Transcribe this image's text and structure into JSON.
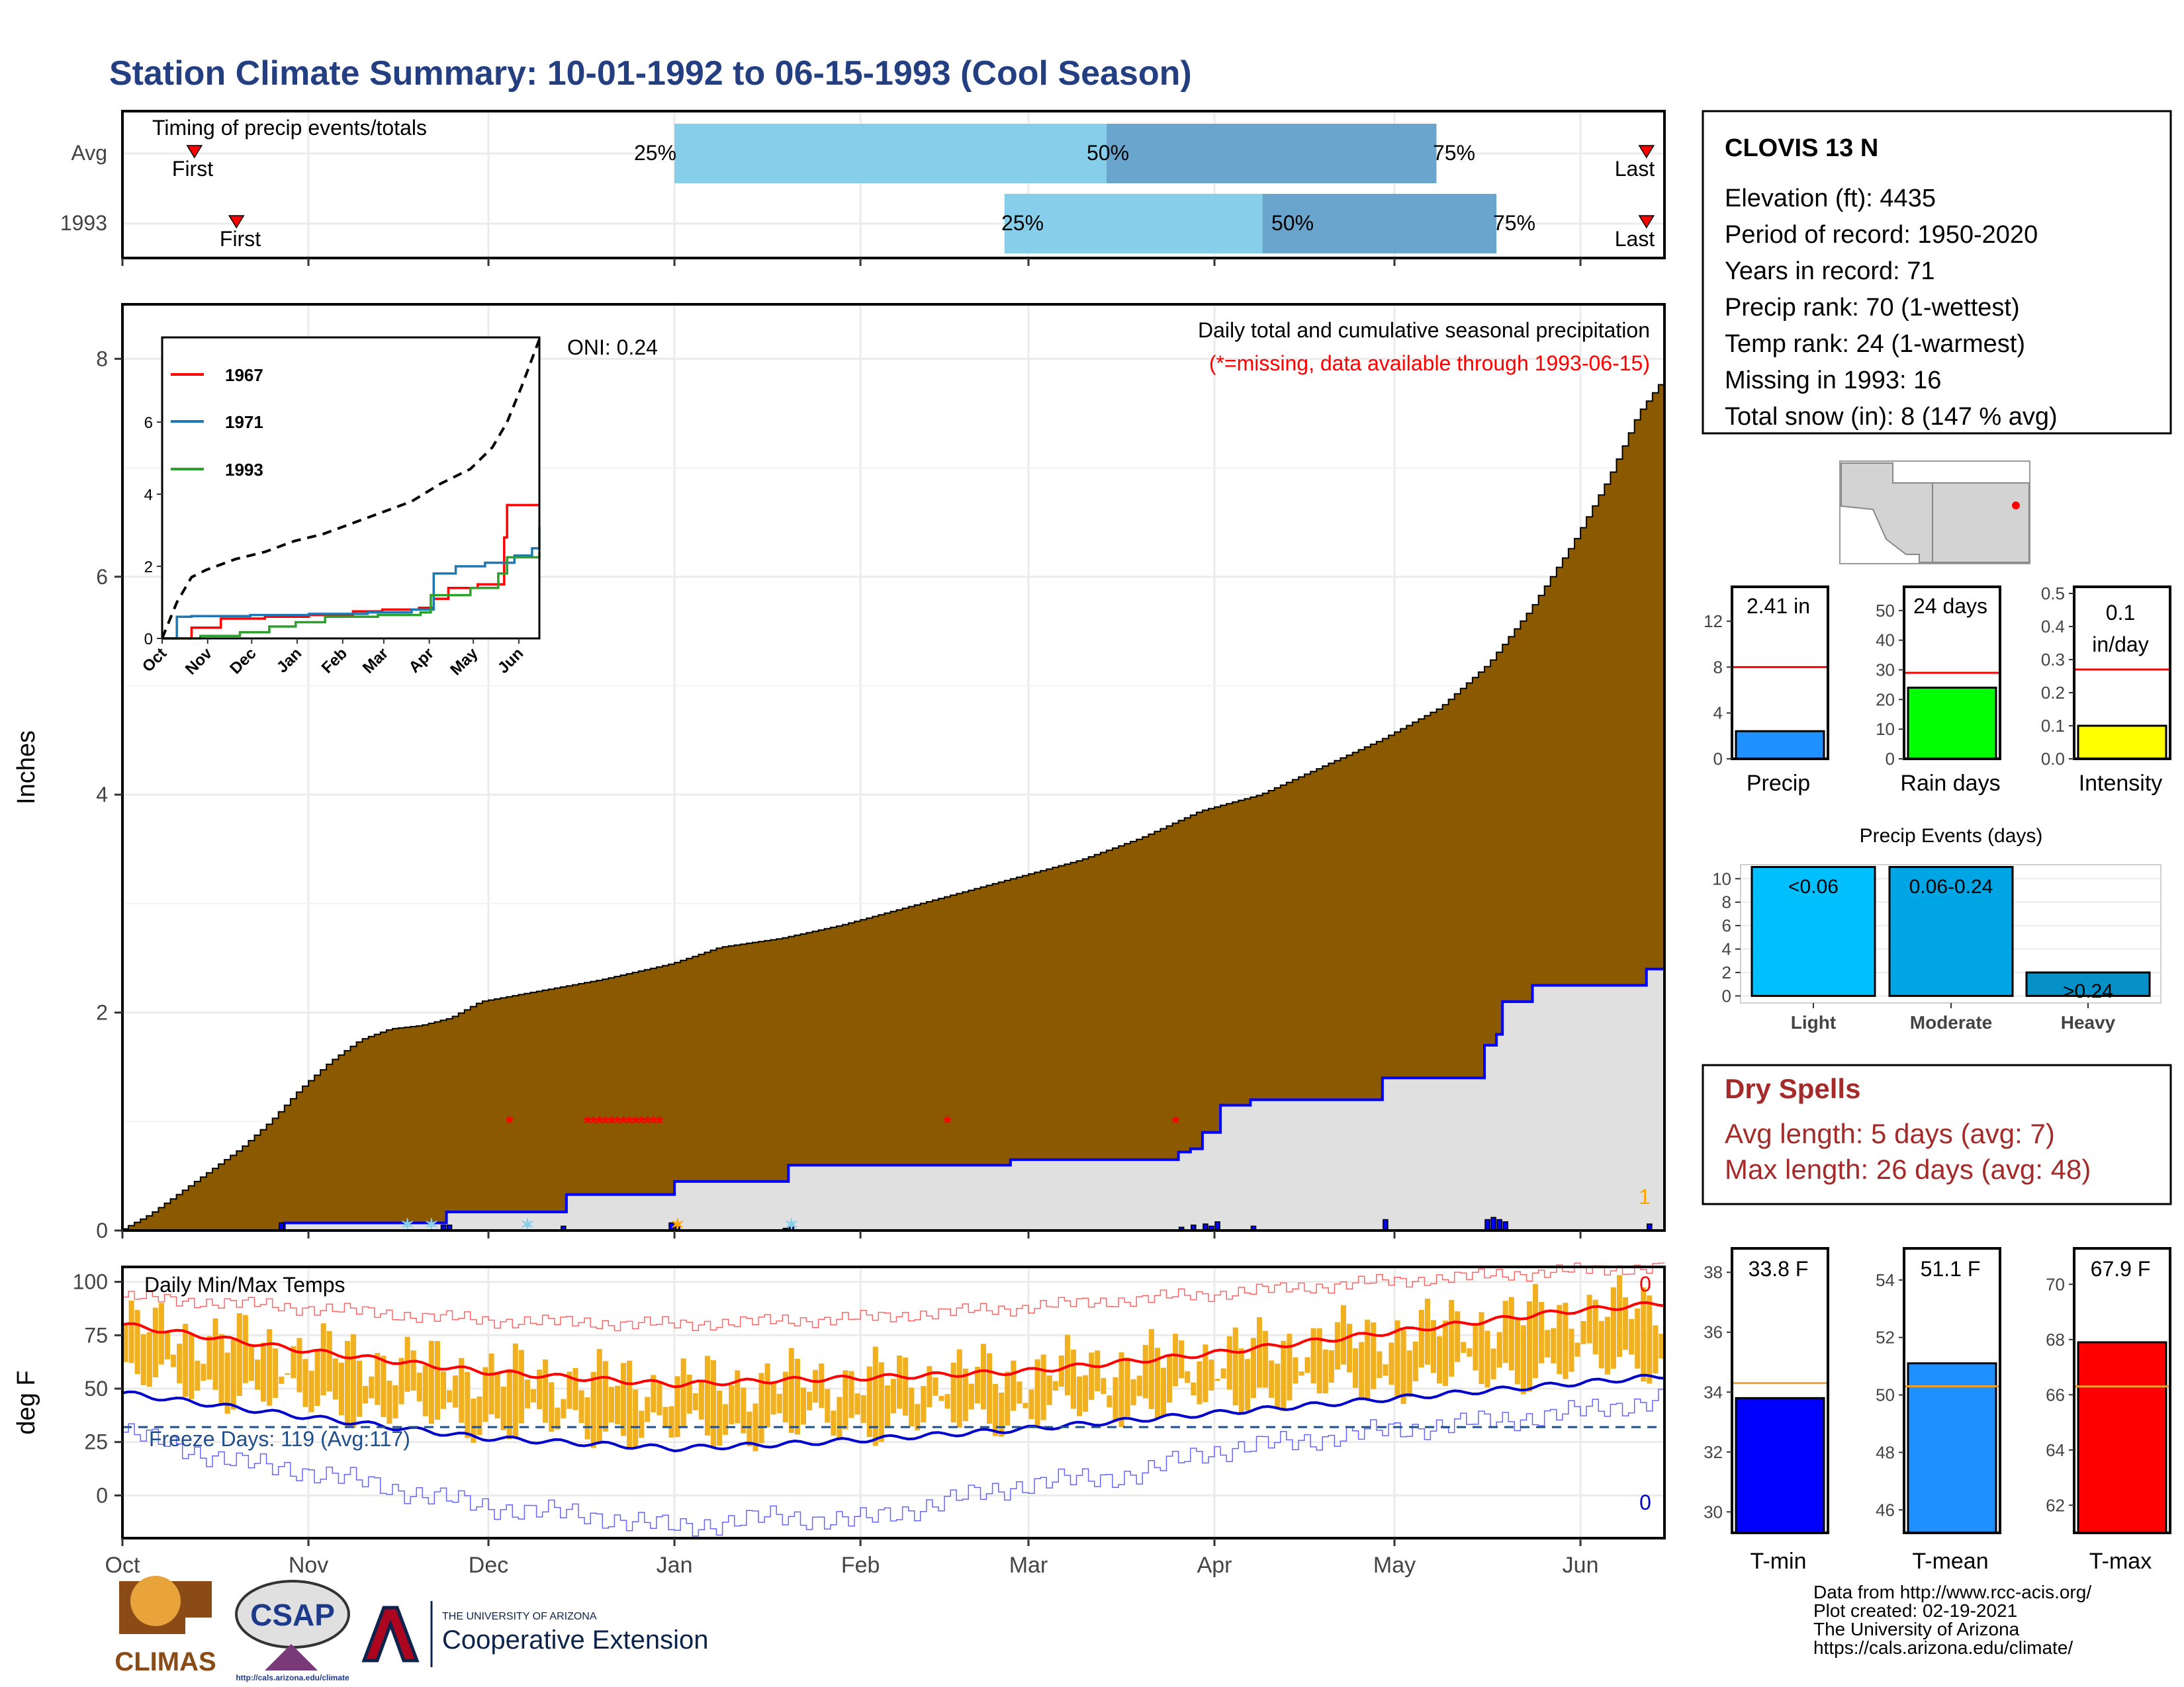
{
  "page_title": "Station Climate Summary: 10-01-1992 to 06-15-1993 (Cool Season)",
  "colors": {
    "title": "#233f82",
    "precip_fill": "#8b5a00",
    "avg_precip_fill": "#e0e0e0",
    "series_blue": "#0000ff",
    "tmax_avg": "#ff0000",
    "tmin_avg": "#0000cc",
    "temp_bars": "#f0b020",
    "missing_marker": "#ff0000",
    "quartile_light": "#87ceeb",
    "quartile_dark": "#6aa5cd",
    "dry_spells_text": "#a52a2a"
  },
  "chart_data": [
    {
      "id": "timing",
      "type": "bar",
      "title": "Timing of precip events/totals",
      "categories": [
        "Avg",
        "1993"
      ],
      "x_ticks": [
        "Oct",
        "Nov",
        "Dec",
        "Jan",
        "Feb",
        "Mar",
        "Apr",
        "May",
        "Jun"
      ],
      "series": [
        {
          "name": "Avg",
          "first_day": 12,
          "p25": 92,
          "p50": 164,
          "p75": 219,
          "last_day": 254
        },
        {
          "name": "1993",
          "first_day": 19,
          "p25": 147,
          "p50": 190,
          "p75": 229,
          "last_day": 254
        }
      ],
      "labels": {
        "first": "First",
        "last": "Last",
        "p25": "25%",
        "p50": "50%",
        "p75": "75%"
      }
    },
    {
      "id": "precip",
      "type": "area",
      "ylabel": "Inches",
      "ylim": [
        0,
        8.5
      ],
      "y_ticks": [
        "0",
        "2",
        "4",
        "6",
        "8"
      ],
      "annotation_title": "Daily total and cumulative seasonal precipitation",
      "annotation_missing": "(*=missing, data available through 1993-06-15)",
      "oni": "ONI: 0.24",
      "corner_label": "1",
      "avg_cumulative": {
        "days": [
          0,
          5,
          10,
          15,
          20,
          25,
          30,
          35,
          40,
          45,
          50,
          55,
          60,
          70,
          80,
          92,
          100,
          110,
          120,
          130,
          140,
          150,
          160,
          170,
          180,
          190,
          200,
          210,
          220,
          228,
          235,
          242,
          248,
          253,
          257
        ],
        "values": [
          0,
          0.15,
          0.35,
          0.55,
          0.75,
          1.0,
          1.3,
          1.55,
          1.75,
          1.85,
          1.88,
          1.95,
          2.1,
          2.2,
          2.3,
          2.45,
          2.6,
          2.68,
          2.8,
          2.95,
          3.1,
          3.25,
          3.4,
          3.6,
          3.85,
          4.0,
          4.25,
          4.5,
          4.8,
          5.2,
          5.7,
          6.3,
          6.9,
          7.5,
          7.8
        ]
      },
      "year_cumulative": {
        "days": [
          0,
          26,
          27,
          53,
          54,
          73,
          74,
          91,
          92,
          110,
          111,
          147,
          148,
          175,
          176,
          178,
          180,
          183,
          188,
          209,
          210,
          226,
          227,
          229,
          230,
          234,
          235,
          254,
          257
        ],
        "values": [
          0,
          0,
          0.07,
          0.07,
          0.17,
          0.17,
          0.33,
          0.33,
          0.45,
          0.45,
          0.6,
          0.6,
          0.65,
          0.65,
          0.72,
          0.75,
          0.9,
          1.15,
          1.2,
          1.2,
          1.4,
          1.4,
          1.7,
          1.8,
          2.1,
          2.1,
          2.25,
          2.4,
          2.4
        ]
      },
      "daily_precip": {
        "days": [
          26,
          53,
          54,
          73,
          91,
          92,
          110,
          111,
          176,
          178,
          180,
          181,
          182,
          188,
          210,
          227,
          228,
          229,
          230,
          254
        ],
        "values": [
          0.07,
          0.05,
          0.05,
          0.04,
          0.07,
          0.05,
          0.02,
          0.03,
          0.03,
          0.05,
          0.06,
          0.04,
          0.08,
          0.04,
          0.1,
          0.1,
          0.12,
          0.1,
          0.08,
          0.06
        ]
      },
      "missing_days": [
        64,
        77,
        78,
        79,
        80,
        81,
        82,
        83,
        84,
        85,
        86,
        87,
        88,
        89,
        137,
        175
      ]
    },
    {
      "id": "inset",
      "type": "line",
      "y_ticks": [
        "0",
        "2",
        "4",
        "6"
      ],
      "x_ticks": [
        "Oct",
        "Nov",
        "Dec",
        "Jan",
        "Feb",
        "Mar",
        "Apr",
        "May",
        "Jun"
      ],
      "series": [
        {
          "name": "1967",
          "days": [
            0,
            20,
            40,
            70,
            100,
            130,
            150,
            175,
            185,
            195,
            215,
            230,
            233,
            235,
            257
          ],
          "values": [
            0,
            0.3,
            0.55,
            0.6,
            0.65,
            0.75,
            0.8,
            0.85,
            1.1,
            1.4,
            1.5,
            1.5,
            2.8,
            3.7,
            3.7
          ]
        },
        {
          "name": "1971",
          "days": [
            0,
            10,
            20,
            60,
            100,
            140,
            170,
            185,
            200,
            220,
            240,
            252,
            257
          ],
          "values": [
            0,
            0.6,
            0.62,
            0.65,
            0.68,
            0.72,
            0.8,
            1.8,
            2.0,
            2.1,
            2.3,
            2.5,
            3.1
          ]
        },
        {
          "name": "1993",
          "days": [
            0,
            26,
            53,
            73,
            91,
            111,
            147,
            176,
            183,
            210,
            229,
            235,
            257
          ],
          "values": [
            0,
            0.07,
            0.17,
            0.33,
            0.45,
            0.6,
            0.65,
            0.72,
            1.2,
            1.4,
            1.8,
            2.25,
            2.4
          ]
        },
        {
          "name": "max",
          "days": [
            0,
            5,
            10,
            20,
            30,
            50,
            70,
            90,
            110,
            130,
            150,
            170,
            190,
            210,
            225,
            235,
            245,
            257
          ],
          "values": [
            0,
            0.5,
            1.0,
            1.7,
            1.9,
            2.2,
            2.4,
            2.7,
            2.9,
            3.2,
            3.5,
            3.8,
            4.3,
            4.7,
            5.3,
            6.0,
            7.0,
            8.3
          ]
        }
      ]
    },
    {
      "id": "temps",
      "type": "bar",
      "title": "Daily Min/Max Temps",
      "ylabel": "deg F",
      "ylim": [
        -20,
        107
      ],
      "y_ticks": [
        "0",
        "25",
        "50",
        "75",
        "100"
      ],
      "x_ticks": [
        "Oct",
        "Nov",
        "Dec",
        "Jan",
        "Feb",
        "Mar",
        "Apr",
        "May",
        "Jun"
      ],
      "freeze_label": "Freeze Days: 119 (Avg:117)",
      "freeze_line": 32,
      "label_top": "0",
      "label_bottom": "0",
      "avg_max": {
        "days": [
          0,
          30,
          60,
          92,
          110,
          123,
          150,
          180,
          210,
          240,
          257
        ],
        "values": [
          80,
          68,
          58,
          52,
          54,
          55,
          58,
          66,
          76,
          86,
          90
        ]
      },
      "avg_min": {
        "days": [
          0,
          30,
          60,
          92,
          110,
          123,
          150,
          180,
          210,
          240,
          257
        ],
        "values": [
          48,
          37,
          27,
          22,
          24,
          26,
          31,
          38,
          45,
          52,
          56
        ]
      },
      "rec_max": {
        "days": [
          0,
          30,
          60,
          92,
          123,
          150,
          180,
          210,
          240,
          257
        ],
        "values": [
          93,
          88,
          82,
          80,
          83,
          88,
          94,
          100,
          105,
          107
        ]
      },
      "rec_min": {
        "days": [
          0,
          20,
          30,
          60,
          80,
          92,
          110,
          123,
          150,
          170,
          180,
          210,
          240,
          257
        ],
        "values": [
          30,
          15,
          12,
          -5,
          -10,
          -15,
          -10,
          -12,
          5,
          10,
          20,
          30,
          38,
          45
        ]
      }
    },
    {
      "id": "mini_precip",
      "type": "bar",
      "value_label": "2.41 in",
      "xlabel": "Precip",
      "value": 2.41,
      "avg": 8.0,
      "ylim": [
        0,
        15
      ],
      "y_ticks": [
        "0",
        "4",
        "8",
        "12"
      ],
      "color": "#1e90ff"
    },
    {
      "id": "mini_raindays",
      "type": "bar",
      "value_label": "24 days",
      "xlabel": "Rain days",
      "value": 24,
      "avg": 29,
      "ylim": [
        0,
        58
      ],
      "y_ticks": [
        "0",
        "10",
        "20",
        "30",
        "40",
        "50"
      ],
      "color": "#00ff00"
    },
    {
      "id": "mini_intensity",
      "type": "bar",
      "value_label_1": "0.1",
      "value_label_2": "in/day",
      "xlabel": "Intensity",
      "value": 0.1,
      "avg": 0.27,
      "ylim": [
        0,
        0.52
      ],
      "y_ticks": [
        "0.0",
        "0.1",
        "0.2",
        "0.3",
        "0.4",
        "0.5"
      ],
      "color": "#ffff00"
    },
    {
      "id": "events",
      "type": "bar",
      "title": "Precip Events (days)",
      "categories": [
        "Light",
        "Moderate",
        "Heavy"
      ],
      "bar_labels": [
        "<0.06",
        "0.06-0.24",
        ">0.24"
      ],
      "values": [
        11,
        11,
        2
      ],
      "ylim": [
        -0.6,
        11.2
      ],
      "y_ticks": [
        "0",
        "2",
        "4",
        "6",
        "8",
        "10"
      ],
      "colors": [
        "#00bfff",
        "#00a5e3",
        "#0590c8"
      ]
    },
    {
      "id": "mini_tmin",
      "type": "bar",
      "value_label": "33.8 F",
      "xlabel": "T-min",
      "value": 33.8,
      "avg": 34.3,
      "ylim": [
        29.3,
        38.8
      ],
      "y_ticks": [
        "30",
        "32",
        "34",
        "36",
        "38"
      ],
      "color": "#0000ff"
    },
    {
      "id": "mini_tmean",
      "type": "bar",
      "value_label": "51.1 F",
      "xlabel": "T-mean",
      "value": 51.1,
      "avg": 50.3,
      "ylim": [
        45.2,
        55.1
      ],
      "y_ticks": [
        "46",
        "48",
        "50",
        "52",
        "54"
      ],
      "color": "#1e90ff"
    },
    {
      "id": "mini_tmax",
      "type": "bar",
      "value_label": "67.9 F",
      "xlabel": "T-max",
      "value": 67.9,
      "avg": 66.3,
      "ylim": [
        61.0,
        71.3
      ],
      "y_ticks": [
        "62",
        "64",
        "66",
        "68",
        "70"
      ],
      "color": "#ff0000"
    }
  ],
  "station": {
    "name": "CLOVIS 13 N",
    "lines": [
      "Elevation (ft): 4435",
      "Period of record: 1950-2020",
      "Years in record: 71",
      "Precip rank: 70 (1-wettest)",
      "Temp rank: 24 (1-warmest)",
      "Missing in 1993: 16",
      "Total snow (in): 8 (147 % avg)"
    ]
  },
  "dry_spells": {
    "title": "Dry Spells",
    "avg": "Avg length: 5 days (avg: 7)",
    "max": "Max length: 26 days (avg: 48)"
  },
  "footer": {
    "lines": [
      "Data from http://www.rcc-acis.org/",
      "Plot created: 02-19-2021",
      "The University of Arizona",
      "https://cals.arizona.edu/climate/"
    ],
    "climas": "CLIMAS",
    "csap": "CSAP",
    "csap_url": "http://cals.arizona.edu/climate",
    "ua_line1": "THE UNIVERSITY OF ARIZONA",
    "ua_line2": "Cooperative Extension"
  }
}
